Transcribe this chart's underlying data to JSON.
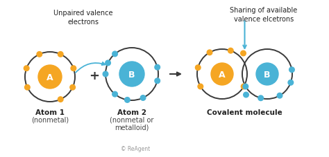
{
  "bg_color": "#ffffff",
  "atom_a_color": "#f5a623",
  "atom_b_color": "#4ab3d6",
  "orbit_color": "#3a3a3a",
  "electron_a_color": "#f5a623",
  "electron_b_color": "#4ab3d6",
  "arrow_color": "#4ab3d6",
  "dark_arrow_color": "#3a3a3a",
  "title1": "Unpaired valence\nelectrons",
  "title2": "Sharing of available\nvalence elcetrons",
  "label_a1": "Atom 1",
  "label_a1b": "(nonmetal)",
  "label_a2": "Atom 2",
  "label_a2b": "(nonmetal or\nmetalloid)",
  "label_mol": "Covalent molecule",
  "copyright": "© ReAgent",
  "plus_sign": "+",
  "figw": 4.74,
  "figh": 2.28,
  "dpi": 100
}
